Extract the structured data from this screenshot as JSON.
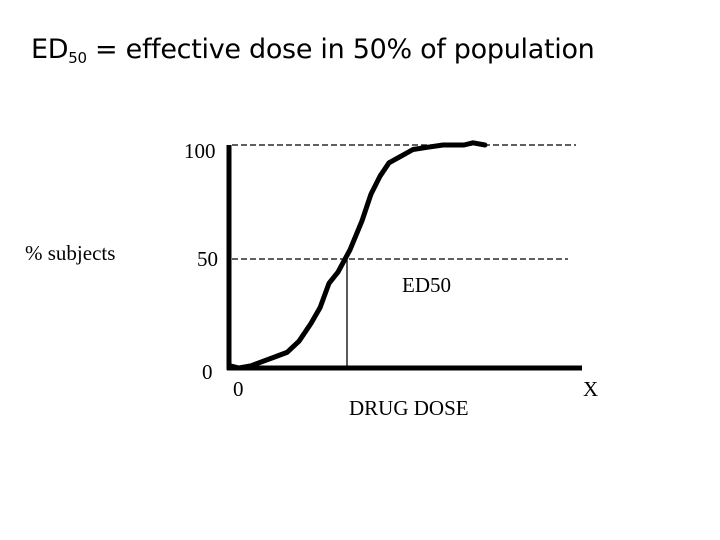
{
  "title": {
    "prefix": "ED",
    "subscript": "50",
    "suffix": " = effective dose in 50% of population"
  },
  "y_axis": {
    "label": "% subjects",
    "ticks": [
      "100",
      "50",
      "0"
    ]
  },
  "x_axis": {
    "origin_label": "0",
    "label": "DRUG DOSE",
    "end_label": "X"
  },
  "annotation": {
    "ed50_label": "ED50"
  },
  "curve": {
    "y_max": 100,
    "points": [
      [
        0,
        1
      ],
      [
        0.06,
        0
      ],
      [
        0.14,
        1
      ],
      [
        0.22,
        3
      ],
      [
        0.3,
        5
      ],
      [
        0.38,
        7
      ],
      [
        0.46,
        12
      ],
      [
        0.54,
        20
      ],
      [
        0.6,
        27
      ],
      [
        0.66,
        38
      ],
      [
        0.72,
        43
      ],
      [
        0.8,
        53
      ],
      [
        0.88,
        66
      ],
      [
        0.94,
        78
      ],
      [
        1.0,
        86
      ],
      [
        1.06,
        92
      ],
      [
        1.14,
        95
      ],
      [
        1.22,
        98
      ],
      [
        1.32,
        99
      ],
      [
        1.42,
        100
      ],
      [
        1.5,
        100
      ],
      [
        1.56,
        100
      ],
      [
        1.62,
        101
      ],
      [
        1.7,
        100
      ]
    ],
    "ed50_x": 0.78
  },
  "colors": {
    "ink": "#000000",
    "background": "#ffffff"
  }
}
